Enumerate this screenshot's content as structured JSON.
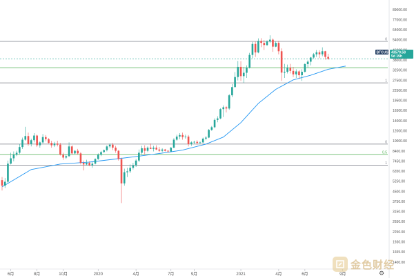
{
  "chart_data": {
    "type": "candlestick",
    "symbol_tag": "BTCUSD",
    "last_price_label": "43579.58",
    "countdown_label": "5d 19h",
    "scale": "log",
    "ylim": [
      1400,
      100000
    ],
    "y_ticks": [
      "89000.00",
      "77000.00",
      "64000.00",
      "54000.00",
      "46000.00",
      "38000.00",
      "32500.00",
      "27500.00",
      "22500.00",
      "19500.00",
      "16500.00",
      "14000.00",
      "12000.00",
      "10000.00",
      "8400.00",
      "7450.00",
      "6350.00",
      "5250.00",
      "4500.00",
      "3750.00",
      "3150.00",
      "2650.00",
      "2250.00",
      "1930.00",
      "1655.00",
      "1400.00"
    ],
    "x_ticks": [
      {
        "label": "6月",
        "week": 3
      },
      {
        "label": "8月",
        "week": 12
      },
      {
        "label": "10月",
        "week": 21
      },
      {
        "label": "2020",
        "week": 33
      },
      {
        "label": "4月",
        "week": 46
      },
      {
        "label": "7月",
        "week": 58
      },
      {
        "label": "9月",
        "week": 66
      },
      {
        "label": "2021",
        "week": 82
      },
      {
        "label": "4月",
        "week": 95
      },
      {
        "label": "6月",
        "week": 104
      },
      {
        "label": "9月",
        "week": 117
      }
    ],
    "fib_levels": [
      {
        "label": "0",
        "value": 58500,
        "color": "#787b86"
      },
      {
        "label": "1",
        "value": 29000,
        "color": "#787b86"
      },
      {
        "label": "0",
        "value": 10300,
        "color": "#787b86"
      },
      {
        "label": "0.5",
        "value": 8650,
        "color": "#4caf50"
      },
      {
        "label": "1",
        "value": 7200,
        "color": "#787b86"
      }
    ],
    "extra_lines": [
      {
        "value": 37500,
        "color": "#4caf50"
      }
    ],
    "candles": [
      [
        5600,
        5900,
        4700,
        5100
      ],
      [
        5100,
        5800,
        4900,
        5450
      ],
      [
        5450,
        7800,
        5300,
        7400
      ],
      [
        7400,
        8900,
        7300,
        8100
      ],
      [
        8100,
        9100,
        7700,
        8600
      ],
      [
        8600,
        9200,
        8400,
        8900
      ],
      [
        8900,
        10300,
        8700,
        9800
      ],
      [
        9800,
        11500,
        9500,
        11100
      ],
      [
        11100,
        13800,
        10900,
        11800
      ],
      [
        11800,
        12500,
        10000,
        10300
      ],
      [
        10300,
        11300,
        9900,
        11000
      ],
      [
        11000,
        12400,
        10600,
        11900
      ],
      [
        11900,
        12100,
        9800,
        10100
      ],
      [
        10100,
        10800,
        9700,
        10600
      ],
      [
        10600,
        12200,
        10400,
        11600
      ],
      [
        11600,
        12000,
        10800,
        11200
      ],
      [
        11200,
        11400,
        10400,
        10500
      ],
      [
        10500,
        10900,
        9700,
        10100
      ],
      [
        10100,
        10700,
        9800,
        10400
      ],
      [
        10400,
        10900,
        9900,
        10200
      ],
      [
        10200,
        10500,
        8500,
        8600
      ],
      [
        8600,
        8900,
        7900,
        8200
      ],
      [
        8200,
        8700,
        8000,
        8400
      ],
      [
        8400,
        10600,
        8300,
        9900
      ],
      [
        9900,
        10100,
        8600,
        8800
      ],
      [
        8800,
        9300,
        8700,
        9200
      ],
      [
        9200,
        9500,
        8600,
        8800
      ],
      [
        8800,
        9000,
        7300,
        7500
      ],
      [
        7500,
        7800,
        6600,
        7300
      ],
      [
        7300,
        7900,
        7200,
        7500
      ],
      [
        7500,
        7700,
        7100,
        7200
      ],
      [
        7200,
        7600,
        6900,
        7400
      ],
      [
        7400,
        8100,
        7300,
        8000
      ],
      [
        8000,
        8800,
        7900,
        8600
      ],
      [
        8600,
        9200,
        8400,
        9000
      ],
      [
        9000,
        9400,
        8900,
        9300
      ],
      [
        9300,
        10100,
        9100,
        9900
      ],
      [
        9900,
        10400,
        9600,
        10200
      ],
      [
        10200,
        10500,
        9300,
        9700
      ],
      [
        9700,
        10000,
        8900,
        9200
      ],
      [
        9200,
        9300,
        7800,
        8000
      ],
      [
        8000,
        8200,
        3800,
        5300
      ],
      [
        5300,
        6800,
        5100,
        6400
      ],
      [
        6400,
        6900,
        5900,
        6500
      ],
      [
        6500,
        7300,
        6300,
        6900
      ],
      [
        6900,
        7500,
        6700,
        7200
      ],
      [
        7200,
        8000,
        7000,
        7800
      ],
      [
        7800,
        9400,
        7600,
        8900
      ],
      [
        8900,
        10000,
        8600,
        9600
      ],
      [
        9600,
        10100,
        8600,
        9200
      ],
      [
        9200,
        9900,
        9000,
        9700
      ],
      [
        9700,
        10400,
        9500,
        9500
      ],
      [
        9500,
        10000,
        9100,
        9700
      ],
      [
        9700,
        10100,
        9300,
        9400
      ],
      [
        9400,
        9800,
        9000,
        9200
      ],
      [
        9200,
        9600,
        9000,
        9400
      ],
      [
        9400,
        9500,
        9100,
        9200
      ],
      [
        9200,
        9300,
        8900,
        9100
      ],
      [
        9100,
        9800,
        9000,
        9700
      ],
      [
        9700,
        11400,
        9600,
        11100
      ],
      [
        11100,
        12100,
        10900,
        11700
      ],
      [
        11700,
        12400,
        11200,
        12000
      ],
      [
        12000,
        12500,
        11100,
        11600
      ],
      [
        11600,
        12100,
        11300,
        11700
      ],
      [
        11700,
        12000,
        9900,
        10300
      ],
      [
        10300,
        10800,
        10000,
        10600
      ],
      [
        10600,
        10900,
        10300,
        10700
      ],
      [
        10700,
        11000,
        10200,
        10500
      ],
      [
        10500,
        10800,
        10300,
        10600
      ],
      [
        10600,
        11500,
        10500,
        11300
      ],
      [
        11300,
        11800,
        11000,
        11500
      ],
      [
        11500,
        13300,
        11400,
        13100
      ],
      [
        13100,
        14000,
        12900,
        13700
      ],
      [
        13700,
        15900,
        13500,
        15500
      ],
      [
        15500,
        16500,
        14900,
        15900
      ],
      [
        15900,
        18900,
        15700,
        18600
      ],
      [
        18600,
        19800,
        16300,
        19200
      ],
      [
        19200,
        19600,
        17600,
        18800
      ],
      [
        18800,
        24000,
        18400,
        23500
      ],
      [
        23500,
        28400,
        22800,
        27000
      ],
      [
        27000,
        34800,
        26900,
        32000
      ],
      [
        32000,
        42000,
        30200,
        38000
      ],
      [
        38000,
        41900,
        30000,
        32500
      ],
      [
        32500,
        38000,
        29000,
        34400
      ],
      [
        34400,
        39000,
        31500,
        37400
      ],
      [
        37400,
        48200,
        37000,
        46500
      ],
      [
        46500,
        58000,
        44000,
        56000
      ],
      [
        56000,
        58300,
        45000,
        48500
      ],
      [
        48500,
        61500,
        47800,
        59000
      ],
      [
        59000,
        61700,
        53000,
        57000
      ],
      [
        57000,
        59800,
        50600,
        55000
      ],
      [
        55000,
        59500,
        54000,
        58500
      ],
      [
        58500,
        64800,
        57000,
        60200
      ],
      [
        60200,
        61500,
        49000,
        53500
      ],
      [
        53500,
        58300,
        53000,
        57000
      ],
      [
        57000,
        59000,
        47000,
        49500
      ],
      [
        49500,
        52000,
        30000,
        34500
      ],
      [
        34500,
        40000,
        31500,
        35000
      ],
      [
        35000,
        39500,
        34000,
        37500
      ],
      [
        37500,
        40000,
        34000,
        35500
      ],
      [
        35500,
        38000,
        32000,
        33500
      ],
      [
        33500,
        36500,
        31500,
        35200
      ],
      [
        35200,
        36000,
        31000,
        33000
      ],
      [
        33000,
        36500,
        30000,
        35000
      ],
      [
        35000,
        40500,
        34500,
        39800
      ],
      [
        39800,
        42500,
        37500,
        41500
      ],
      [
        41500,
        45000,
        39000,
        44500
      ],
      [
        44500,
        48000,
        43500,
        47000
      ],
      [
        47000,
        50500,
        45000,
        48600
      ],
      [
        48600,
        50300,
        44000,
        47000
      ],
      [
        47000,
        52900,
        45500,
        49500
      ],
      [
        49500,
        49800,
        43000,
        45000
      ],
      [
        45000,
        47500,
        42800,
        43579
      ]
    ],
    "ma_series": [
      [
        0,
        5000
      ],
      [
        10,
        6700
      ],
      [
        20,
        7350
      ],
      [
        30,
        7600
      ],
      [
        40,
        8050
      ],
      [
        46,
        8350
      ],
      [
        55,
        8850
      ],
      [
        62,
        9300
      ],
      [
        70,
        10300
      ],
      [
        76,
        11600
      ],
      [
        82,
        14800
      ],
      [
        88,
        20500
      ],
      [
        94,
        26000
      ],
      [
        100,
        30500
      ],
      [
        106,
        33000
      ],
      [
        112,
        36500
      ],
      [
        118,
        38500
      ]
    ],
    "colors": {
      "up": "#26a69a",
      "down": "#ef5350",
      "ma": "#2196f3",
      "tag": "#26a69a",
      "tag_bg_dark": "#1e3a5f"
    }
  },
  "watermark": {
    "text": "金色财经"
  },
  "icons": {
    "settings": "gear-icon"
  }
}
